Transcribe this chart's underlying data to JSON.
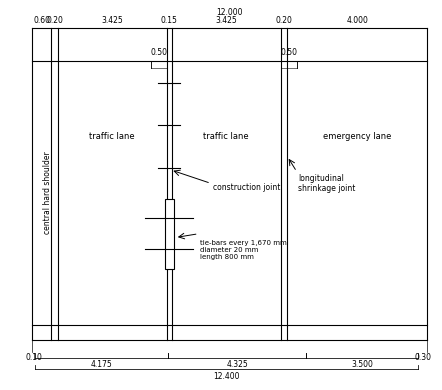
{
  "fig_width": 4.42,
  "fig_height": 3.9,
  "dpi": 100,
  "bg_color": "#ffffff",
  "line_color": "#000000",
  "top_label": "12.000",
  "bottom_label": "12.400",
  "top_dims": [
    "0.60",
    "0.20",
    "3.425",
    "0.15",
    "3.425",
    "0.20",
    "4.000"
  ],
  "bottom_dims": [
    "0.10",
    "4.175",
    "4.325",
    "3.500",
    "0.30"
  ],
  "lane_labels": [
    "traffic lane",
    "traffic lane",
    "emergency lane"
  ],
  "left_label": "central hard shoulder",
  "construction_joint_label": "construction joint",
  "longitudinal_shrinkage_label": "longitudinal\nshrinkage joint",
  "tie_bars_label": "tie-bars every 1,670 mm\ndiameter 20 mm\nlength 800 mm",
  "dim_050_labels": [
    "0.50",
    "0.50"
  ]
}
